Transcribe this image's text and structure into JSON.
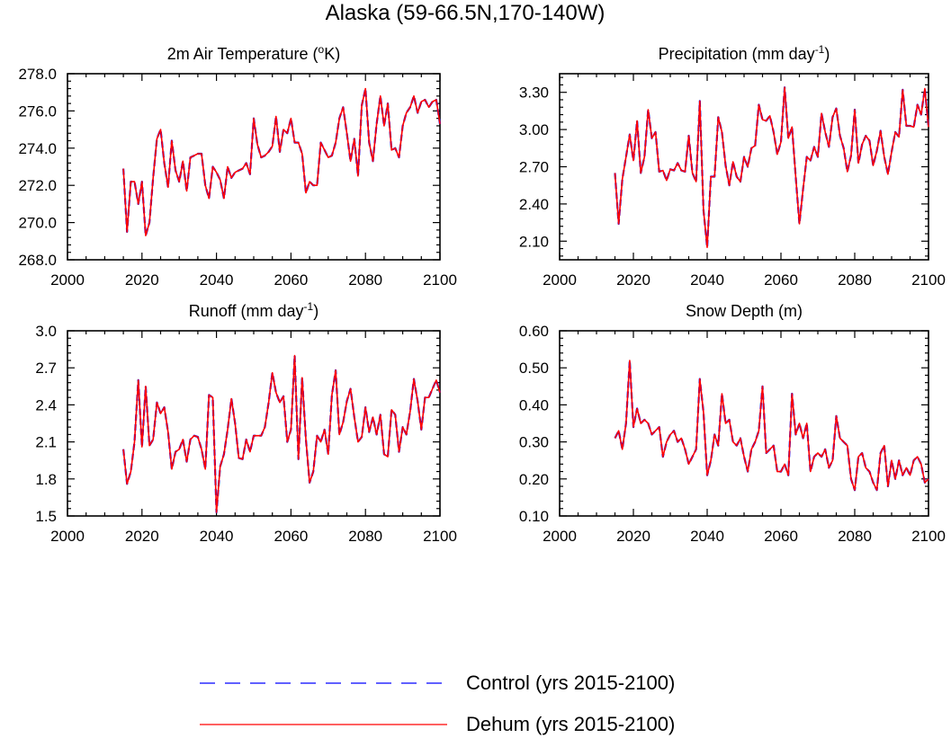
{
  "title": "Alaska (59-66.5N,170-140W)",
  "legend": {
    "control": {
      "label": "Control (yrs 2015-2100)",
      "color": "#0000ff",
      "style": "dashed"
    },
    "dehum": {
      "label": "Dehum (yrs 2015-2100)",
      "color": "#ff0000",
      "style": "solid"
    }
  },
  "chart_data": [
    {
      "type": "line",
      "title_main": "2m Air Temperature (",
      "title_sup": "o",
      "title_end": "K)",
      "xlim": [
        2000,
        2100
      ],
      "xticks": [
        "2000",
        "2020",
        "2040",
        "2060",
        "2080",
        "2100"
      ],
      "ylim": [
        268.0,
        278.0
      ],
      "yticks": [
        "268.0",
        "270.0",
        "272.0",
        "274.0",
        "276.0",
        "278.0"
      ],
      "x_start": 2015,
      "series": [
        {
          "name": "Control",
          "values": [
            272.9,
            269.5,
            272.2,
            272.2,
            271.0,
            272.2,
            269.3,
            270.0,
            272.4,
            274.5,
            275.0,
            273.2,
            271.9,
            274.4,
            272.8,
            272.2,
            273.3,
            271.7,
            273.5,
            273.6,
            273.7,
            273.7,
            272.0,
            271.3,
            273.0,
            272.7,
            272.3,
            271.3,
            273.0,
            272.4,
            272.7,
            272.8,
            272.9,
            273.2,
            272.6,
            275.6,
            274.2,
            273.5,
            273.6,
            273.8,
            274.1,
            275.7,
            273.8,
            275.0,
            274.8,
            275.6,
            274.3,
            274.3,
            273.7,
            271.6,
            272.2,
            272.0,
            272.0,
            274.3,
            273.9,
            273.5,
            273.6,
            274.3,
            275.6,
            276.2,
            274.8,
            273.3,
            274.5,
            272.5,
            276.3,
            277.2,
            274.3,
            273.3,
            275.3,
            276.8,
            275.2,
            276.4,
            273.9,
            274.0,
            273.5,
            275.2,
            275.9,
            276.2,
            276.8,
            275.9,
            276.5,
            276.6,
            276.2,
            276.5,
            276.6,
            275.3
          ]
        },
        {
          "name": "Dehum",
          "values": [
            272.9,
            269.5,
            272.2,
            272.2,
            271.0,
            272.2,
            269.3,
            270.0,
            272.4,
            274.5,
            275.0,
            273.2,
            271.9,
            274.4,
            272.8,
            272.2,
            273.3,
            271.7,
            273.5,
            273.6,
            273.7,
            273.7,
            272.0,
            271.3,
            273.0,
            272.7,
            272.3,
            271.3,
            273.0,
            272.4,
            272.7,
            272.8,
            272.9,
            273.2,
            272.6,
            275.6,
            274.2,
            273.5,
            273.6,
            273.8,
            274.1,
            275.7,
            273.8,
            275.0,
            274.8,
            275.6,
            274.3,
            274.3,
            273.7,
            271.6,
            272.2,
            272.0,
            272.0,
            274.3,
            273.9,
            273.5,
            273.6,
            274.3,
            275.6,
            276.2,
            274.8,
            273.3,
            274.5,
            272.5,
            276.3,
            277.2,
            274.3,
            273.3,
            275.3,
            276.8,
            275.2,
            276.4,
            273.9,
            274.0,
            273.5,
            275.2,
            275.9,
            276.2,
            276.8,
            275.9,
            276.5,
            276.6,
            276.2,
            276.5,
            276.6,
            275.3
          ]
        }
      ]
    },
    {
      "type": "line",
      "title_main": "Precipitation (mm day",
      "title_sup": "-1",
      "title_end": ")",
      "xlim": [
        2000,
        2100
      ],
      "xticks": [
        "2000",
        "2020",
        "2040",
        "2060",
        "2080",
        "2100"
      ],
      "ylim": [
        1.95,
        3.45
      ],
      "yticks": [
        "2.10",
        "2.40",
        "2.70",
        "3.00",
        "3.30"
      ],
      "ytick_values": [
        2.1,
        2.4,
        2.7,
        3.0,
        3.3
      ],
      "x_start": 2015,
      "series": [
        {
          "name": "Control",
          "values": [
            2.65,
            2.24,
            2.6,
            2.78,
            2.96,
            2.75,
            3.07,
            2.65,
            2.78,
            3.16,
            2.93,
            2.98,
            2.66,
            2.67,
            2.59,
            2.68,
            2.67,
            2.73,
            2.67,
            2.66,
            2.95,
            2.65,
            2.58,
            3.23,
            2.35,
            2.05,
            2.62,
            2.62,
            3.1,
            2.98,
            2.71,
            2.55,
            2.74,
            2.62,
            2.58,
            2.78,
            2.7,
            2.85,
            2.87,
            3.2,
            3.08,
            3.07,
            3.11,
            2.98,
            2.8,
            2.9,
            3.34,
            2.93,
            3.02,
            2.62,
            2.24,
            2.52,
            2.78,
            2.75,
            2.86,
            2.78,
            3.13,
            2.98,
            2.86,
            3.1,
            3.17,
            2.95,
            2.85,
            2.66,
            2.79,
            3.16,
            2.73,
            2.88,
            2.95,
            2.91,
            2.71,
            2.83,
            2.99,
            2.78,
            2.64,
            2.82,
            2.98,
            2.94,
            3.32,
            3.03,
            3.03,
            3.02,
            3.2,
            3.12,
            3.33,
            3.02
          ]
        },
        {
          "name": "Dehum",
          "values": [
            2.65,
            2.24,
            2.6,
            2.78,
            2.96,
            2.75,
            3.07,
            2.65,
            2.78,
            3.16,
            2.93,
            2.98,
            2.66,
            2.67,
            2.59,
            2.68,
            2.67,
            2.73,
            2.67,
            2.66,
            2.95,
            2.65,
            2.58,
            3.23,
            2.35,
            2.05,
            2.62,
            2.62,
            3.1,
            2.98,
            2.71,
            2.55,
            2.74,
            2.62,
            2.58,
            2.78,
            2.7,
            2.85,
            2.87,
            3.2,
            3.08,
            3.07,
            3.11,
            2.98,
            2.8,
            2.9,
            3.34,
            2.93,
            3.02,
            2.62,
            2.24,
            2.52,
            2.78,
            2.75,
            2.86,
            2.78,
            3.13,
            2.98,
            2.86,
            3.1,
            3.17,
            2.95,
            2.85,
            2.66,
            2.79,
            3.16,
            2.73,
            2.88,
            2.95,
            2.91,
            2.71,
            2.83,
            2.99,
            2.78,
            2.64,
            2.82,
            2.98,
            2.94,
            3.32,
            3.03,
            3.03,
            3.02,
            3.2,
            3.12,
            3.33,
            3.02
          ]
        }
      ]
    },
    {
      "type": "line",
      "title_main": "Runoff (mm day",
      "title_sup": "-1",
      "title_end": ")",
      "xlim": [
        2000,
        2100
      ],
      "xticks": [
        "2000",
        "2020",
        "2040",
        "2060",
        "2080",
        "2100"
      ],
      "ylim": [
        1.5,
        3.0
      ],
      "yticks": [
        "1.5",
        "1.8",
        "2.1",
        "2.4",
        "2.7",
        "3.0"
      ],
      "x_start": 2015,
      "series": [
        {
          "name": "Control",
          "values": [
            2.04,
            1.76,
            1.86,
            2.1,
            2.6,
            2.06,
            2.55,
            2.07,
            2.12,
            2.42,
            2.33,
            2.38,
            2.18,
            1.88,
            2.02,
            2.04,
            2.12,
            1.94,
            2.12,
            2.15,
            2.14,
            2.04,
            1.88,
            2.48,
            2.46,
            1.53,
            1.9,
            2.0,
            2.2,
            2.45,
            2.25,
            1.97,
            1.96,
            2.12,
            2.02,
            2.15,
            2.15,
            2.15,
            2.22,
            2.42,
            2.66,
            2.5,
            2.42,
            2.47,
            2.1,
            2.2,
            2.8,
            1.96,
            2.62,
            2.12,
            1.77,
            1.86,
            2.15,
            2.1,
            2.2,
            2.0,
            2.48,
            2.68,
            2.16,
            2.26,
            2.43,
            2.53,
            2.3,
            2.1,
            2.14,
            2.38,
            2.18,
            2.3,
            2.16,
            2.32,
            2.0,
            1.98,
            2.36,
            2.32,
            2.02,
            2.22,
            2.16,
            2.35,
            2.61,
            2.43,
            2.2,
            2.46,
            2.46,
            2.53,
            2.6,
            2.5
          ]
        },
        {
          "name": "Dehum",
          "values": [
            2.04,
            1.76,
            1.86,
            2.1,
            2.6,
            2.06,
            2.55,
            2.07,
            2.12,
            2.42,
            2.33,
            2.38,
            2.18,
            1.88,
            2.02,
            2.04,
            2.12,
            1.94,
            2.12,
            2.15,
            2.14,
            2.04,
            1.88,
            2.48,
            2.46,
            1.53,
            1.9,
            2.0,
            2.2,
            2.45,
            2.25,
            1.97,
            1.96,
            2.12,
            2.02,
            2.15,
            2.15,
            2.15,
            2.22,
            2.42,
            2.66,
            2.5,
            2.42,
            2.47,
            2.1,
            2.2,
            2.8,
            1.96,
            2.62,
            2.12,
            1.77,
            1.86,
            2.15,
            2.1,
            2.2,
            2.0,
            2.48,
            2.68,
            2.16,
            2.26,
            2.43,
            2.53,
            2.3,
            2.1,
            2.14,
            2.38,
            2.18,
            2.3,
            2.16,
            2.32,
            2.0,
            1.98,
            2.36,
            2.32,
            2.02,
            2.22,
            2.16,
            2.35,
            2.61,
            2.43,
            2.2,
            2.46,
            2.46,
            2.53,
            2.6,
            2.5
          ]
        }
      ]
    },
    {
      "type": "line",
      "title_main": "Snow Depth (m)",
      "title_sup": "",
      "title_end": "",
      "xlim": [
        2000,
        2100
      ],
      "xticks": [
        "2000",
        "2020",
        "2040",
        "2060",
        "2080",
        "2100"
      ],
      "ylim": [
        0.1,
        0.6
      ],
      "yticks": [
        "0.10",
        "0.20",
        "0.30",
        "0.40",
        "0.50",
        "0.60"
      ],
      "x_start": 2015,
      "series": [
        {
          "name": "Control",
          "values": [
            0.31,
            0.33,
            0.28,
            0.35,
            0.52,
            0.34,
            0.39,
            0.35,
            0.36,
            0.35,
            0.32,
            0.33,
            0.34,
            0.26,
            0.3,
            0.32,
            0.33,
            0.3,
            0.31,
            0.28,
            0.24,
            0.26,
            0.28,
            0.47,
            0.38,
            0.21,
            0.25,
            0.32,
            0.29,
            0.43,
            0.35,
            0.36,
            0.3,
            0.29,
            0.31,
            0.26,
            0.22,
            0.28,
            0.3,
            0.33,
            0.45,
            0.27,
            0.28,
            0.29,
            0.22,
            0.22,
            0.24,
            0.21,
            0.43,
            0.32,
            0.35,
            0.31,
            0.35,
            0.22,
            0.26,
            0.27,
            0.26,
            0.28,
            0.23,
            0.25,
            0.37,
            0.31,
            0.3,
            0.29,
            0.2,
            0.17,
            0.26,
            0.27,
            0.23,
            0.22,
            0.19,
            0.17,
            0.27,
            0.29,
            0.18,
            0.25,
            0.2,
            0.25,
            0.21,
            0.23,
            0.21,
            0.25,
            0.26,
            0.24,
            0.19,
            0.2
          ]
        },
        {
          "name": "Dehum",
          "values": [
            0.31,
            0.33,
            0.28,
            0.35,
            0.52,
            0.34,
            0.39,
            0.35,
            0.36,
            0.35,
            0.32,
            0.33,
            0.34,
            0.26,
            0.3,
            0.32,
            0.33,
            0.3,
            0.31,
            0.28,
            0.24,
            0.26,
            0.28,
            0.47,
            0.38,
            0.21,
            0.25,
            0.32,
            0.29,
            0.43,
            0.35,
            0.36,
            0.3,
            0.29,
            0.31,
            0.26,
            0.22,
            0.28,
            0.3,
            0.33,
            0.45,
            0.27,
            0.28,
            0.29,
            0.22,
            0.22,
            0.24,
            0.21,
            0.43,
            0.32,
            0.35,
            0.31,
            0.35,
            0.22,
            0.26,
            0.27,
            0.26,
            0.28,
            0.23,
            0.25,
            0.37,
            0.31,
            0.3,
            0.29,
            0.2,
            0.17,
            0.26,
            0.27,
            0.23,
            0.22,
            0.19,
            0.17,
            0.27,
            0.29,
            0.18,
            0.25,
            0.2,
            0.25,
            0.21,
            0.23,
            0.21,
            0.25,
            0.26,
            0.24,
            0.19,
            0.2
          ]
        }
      ]
    }
  ]
}
